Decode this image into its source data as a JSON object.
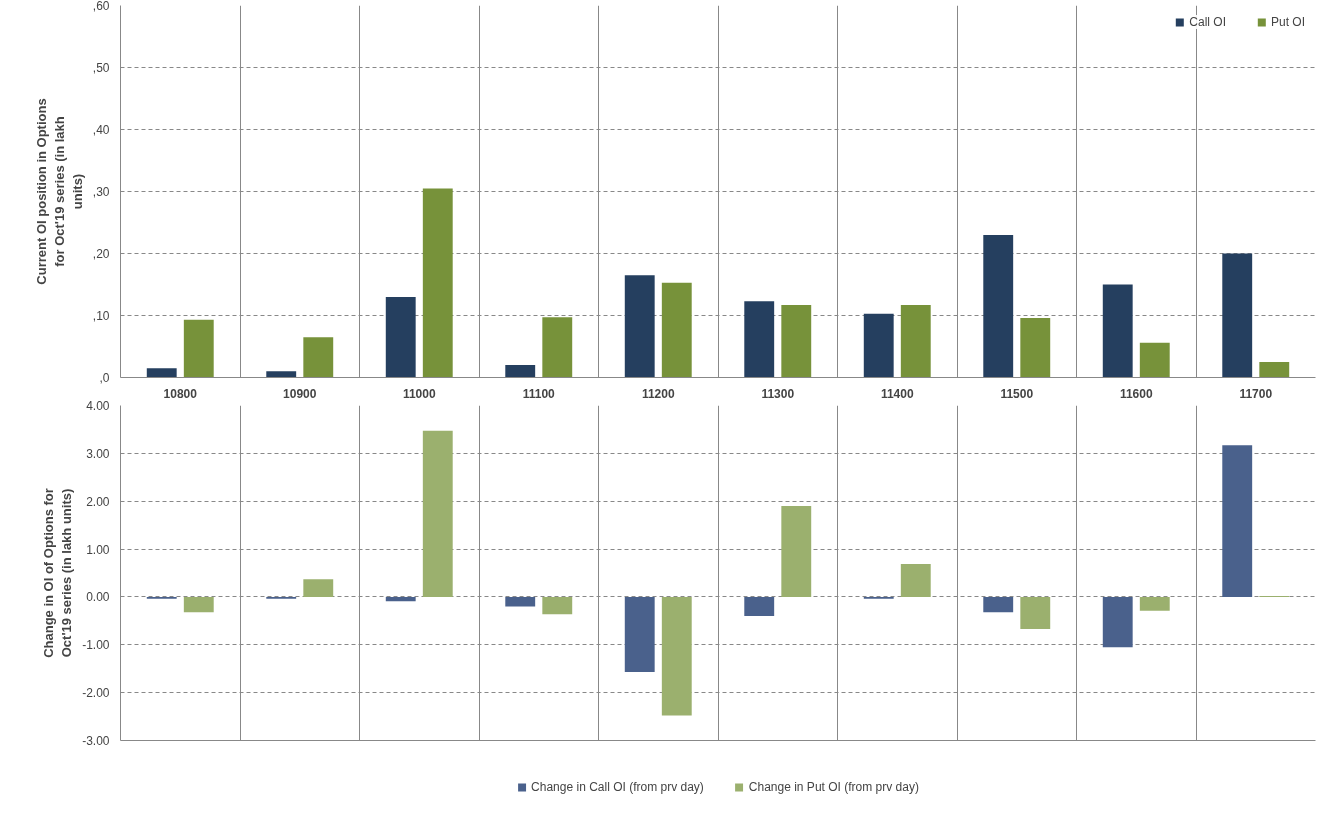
{
  "chart_data": [
    {
      "type": "bar",
      "ylabel": "Current OI position in Options for Oct'19 series (in lakh units)",
      "categories": [
        "10800",
        "10900",
        "11000",
        "11100",
        "11200",
        "11300",
        "11400",
        "11500",
        "11600",
        "11700"
      ],
      "series": [
        {
          "name": "Call OI",
          "color": "#253f5f",
          "values": [
            1.5,
            1,
            13,
            2,
            16.5,
            12.3,
            10.3,
            23,
            15,
            20
          ]
        },
        {
          "name": "Put OI",
          "color": "#77923a",
          "values": [
            9.3,
            6.5,
            30.5,
            9.7,
            15.3,
            11.7,
            11.7,
            9.6,
            5.6,
            2.5
          ]
        }
      ],
      "ylim": [
        0,
        60
      ],
      "yticks": [
        {
          "value": 0,
          "label": ",0"
        },
        {
          "value": 10,
          "label": ",10"
        },
        {
          "value": 20,
          "label": ",20"
        },
        {
          "value": 30,
          "label": ",30"
        },
        {
          "value": 40,
          "label": ",40"
        },
        {
          "value": 50,
          "label": ",50"
        },
        {
          "value": 60,
          "label": ",60"
        }
      ],
      "grid": true,
      "legend": "top right"
    },
    {
      "type": "bar",
      "ylabel": "Change in OI of Options for Oct'19 series (in lakh units)",
      "categories": [
        null,
        null,
        null,
        null,
        null,
        null,
        null,
        null,
        null,
        null
      ],
      "series": [
        {
          "name": "Change in Call OI (from prv day)",
          "color": "#4a618c",
          "values": [
            -0.04,
            -0.04,
            -0.09,
            -0.2,
            -1.57,
            -0.4,
            -0.04,
            -0.32,
            -1.05,
            3.17
          ]
        },
        {
          "name": "Change in Put OI (from prv day)",
          "color": "#9bb06e",
          "values": [
            -0.32,
            0.37,
            3.47,
            -0.36,
            -2.48,
            1.9,
            0.69,
            -0.67,
            -0.29,
            0.02
          ]
        }
      ],
      "ylim": [
        -3,
        4
      ],
      "yticks": [
        {
          "value": -3,
          "label": "-3.00"
        },
        {
          "value": -2,
          "label": "-2.00"
        },
        {
          "value": -1,
          "label": "-1.00"
        },
        {
          "value": 0,
          "label": "0.00"
        },
        {
          "value": 1,
          "label": "1.00"
        },
        {
          "value": 2,
          "label": "2.00"
        },
        {
          "value": 3,
          "label": "3.00"
        },
        {
          "value": 4,
          "label": "4.00"
        }
      ],
      "grid": true,
      "legend": "bottom",
      "tick_labels": "y"
    }
  ]
}
